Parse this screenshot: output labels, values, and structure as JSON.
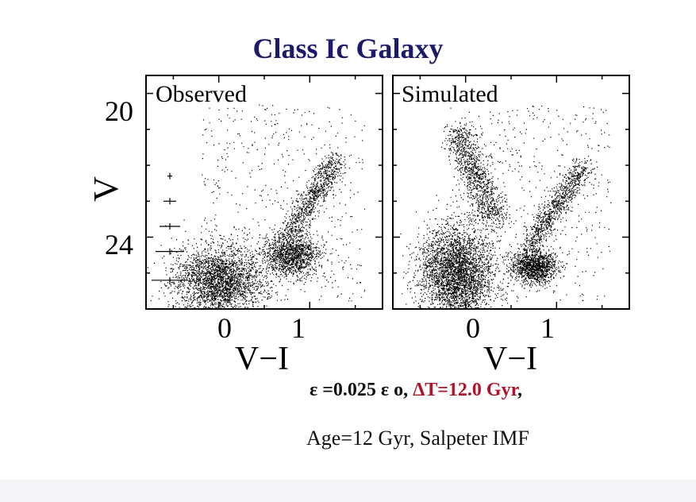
{
  "slide": {
    "title": "Class Ic Galaxy",
    "caption_part1": "ε =0.025 ε o, ",
    "caption_part2": "ΔT=12.0 Gyr",
    "caption_part3": ",",
    "caption_line2": "Age=12 Gyr, Salpeter IMF",
    "accent_color": "#b0142a",
    "title_color": "#1b1b6a"
  },
  "chart_data": [
    {
      "type": "scatter",
      "title": "Observed",
      "xlabel": "V−I",
      "ylabel": "V",
      "xlim": [
        -0.8,
        1.8
      ],
      "ylim": [
        26,
        19.5
      ],
      "x_ticks": [
        "0",
        "1"
      ],
      "y_ticks": [
        "20",
        "24"
      ],
      "errorbars_v": [
        22.3,
        23.0,
        23.7,
        24.4,
        25.2
      ],
      "distribution": {
        "main_sequence": {
          "x": 0.0,
          "y": 25.2,
          "spread": [
            0.25,
            0.6
          ]
        },
        "red_clump": {
          "x": 0.8,
          "y": 24.5,
          "spread": [
            0.15,
            0.35
          ]
        },
        "red_giant_branch": {
          "from": [
            0.75,
            24.0
          ],
          "to": [
            1.3,
            21.8
          ]
        }
      }
    },
    {
      "type": "scatter",
      "title": "Simulated",
      "xlabel": "V−I",
      "ylabel": "",
      "xlim": [
        -0.8,
        1.8
      ],
      "ylim": [
        26,
        19.5
      ],
      "x_ticks": [
        "0",
        "1"
      ],
      "y_ticks": [],
      "distribution": {
        "main_sequence": {
          "x": -0.1,
          "y": 25.0,
          "spread": [
            0.2,
            0.8
          ]
        },
        "blue_loop": {
          "from": [
            -0.1,
            21.0
          ],
          "to": [
            0.3,
            23.5
          ]
        },
        "red_clump": {
          "x": 0.75,
          "y": 24.8,
          "spread": [
            0.12,
            0.3
          ]
        },
        "red_giant_branch": {
          "from": [
            0.7,
            24.2
          ],
          "to": [
            1.3,
            22.0
          ]
        }
      }
    }
  ]
}
